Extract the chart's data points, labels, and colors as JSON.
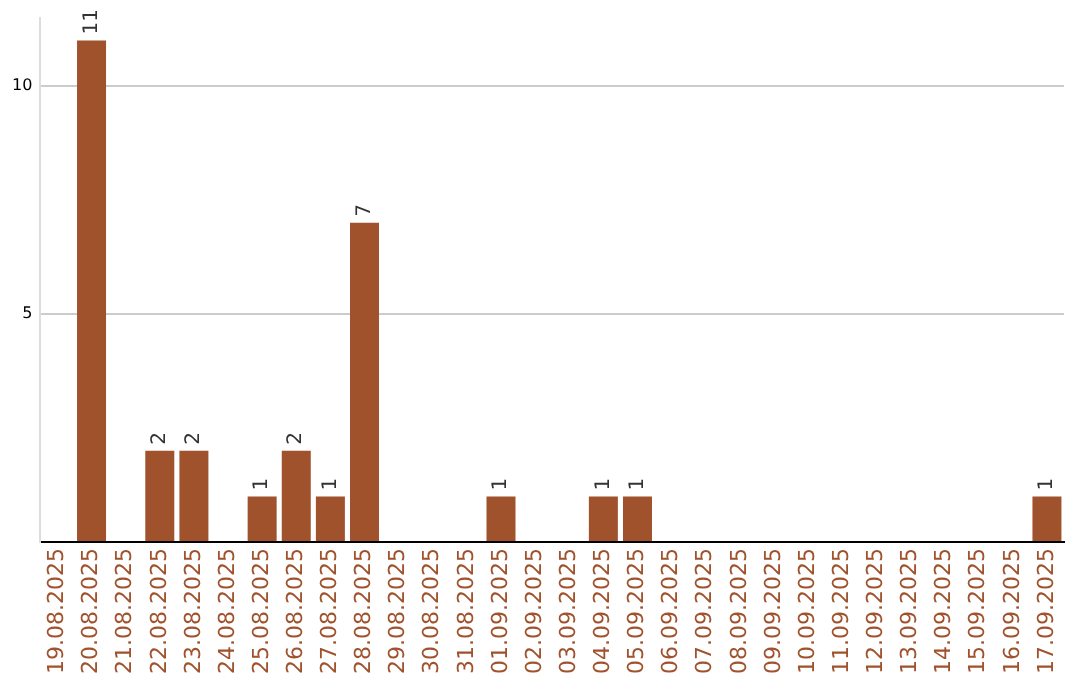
{
  "chart_data": {
    "type": "bar",
    "categories": [
      "19.08.2025",
      "20.08.2025",
      "21.08.2025",
      "22.08.2025",
      "23.08.2025",
      "24.08.2025",
      "25.08.2025",
      "26.08.2025",
      "27.08.2025",
      "28.08.2025",
      "29.08.2025",
      "30.08.2025",
      "31.08.2025",
      "01.09.2025",
      "02.09.2025",
      "03.09.2025",
      "04.09.2025",
      "05.09.2025",
      "06.09.2025",
      "07.09.2025",
      "08.09.2025",
      "09.09.2025",
      "10.09.2025",
      "11.09.2025",
      "12.09.2025",
      "13.09.2025",
      "14.09.2025",
      "15.09.2025",
      "16.09.2025",
      "17.09.2025"
    ],
    "values": [
      0,
      11,
      0,
      2,
      2,
      0,
      1,
      2,
      1,
      7,
      0,
      0,
      0,
      1,
      0,
      0,
      1,
      1,
      0,
      0,
      0,
      0,
      0,
      0,
      0,
      0,
      0,
      0,
      0,
      1
    ],
    "value_labels": [
      null,
      "11",
      null,
      "2",
      "2",
      null,
      "1",
      "2",
      "1",
      "7",
      null,
      null,
      null,
      "1",
      null,
      null,
      "1",
      "1",
      null,
      null,
      null,
      null,
      null,
      null,
      null,
      null,
      null,
      null,
      null,
      "1"
    ],
    "color": "#a0522d",
    "ylim": [
      0,
      11.5
    ],
    "yticks": [
      {
        "value": 0,
        "label": null
      },
      5,
      10
    ],
    "grid": "y",
    "legend": false
  }
}
